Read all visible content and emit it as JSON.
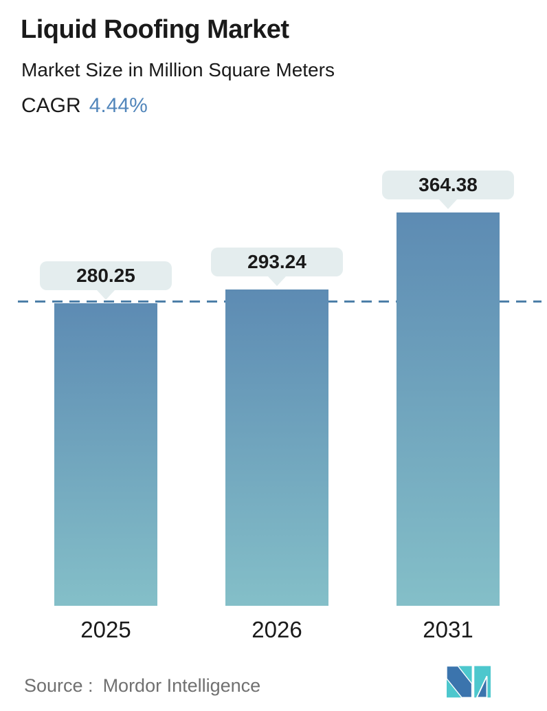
{
  "header": {
    "title": "Liquid Roofing Market",
    "subtitle": "Market Size in Million Square Meters",
    "cagr_label": "CAGR",
    "cagr_value": "4.44%"
  },
  "chart_data": {
    "type": "bar",
    "title": "Liquid Roofing Market",
    "subtitle": "Market Size in Million Square Meters",
    "cagr_percent": 4.44,
    "categories": [
      "2025",
      "2026",
      "2031"
    ],
    "values": [
      280.25,
      293.24,
      364.38
    ],
    "value_labels": [
      "280.25",
      "293.24",
      "364.38"
    ],
    "unit": "Million Square Meters",
    "xlabel": "",
    "ylabel": "Market Size in Million Square Meters",
    "ylim": [
      0,
      400
    ],
    "grid": false,
    "legend": "none",
    "reference_line": {
      "style": "dashed",
      "value": 280.25
    }
  },
  "footer": {
    "source_label": "Source :",
    "source_value": "Mordor Intelligence"
  },
  "logo": {
    "name": "mordor-intelligence-logo"
  },
  "colors": {
    "text_dark": "#1a1a1a",
    "accent_blue": "#5286bb",
    "bar_gradient_top": "#5d8bb3",
    "bar_gradient_bottom": "#84bfc8",
    "dashed_line": "#4d7fa8",
    "label_pill_bg": "#e4edee",
    "source_gray": "#707070",
    "logo_blue": "#3b74ad",
    "logo_teal": "#4dc7cd"
  }
}
